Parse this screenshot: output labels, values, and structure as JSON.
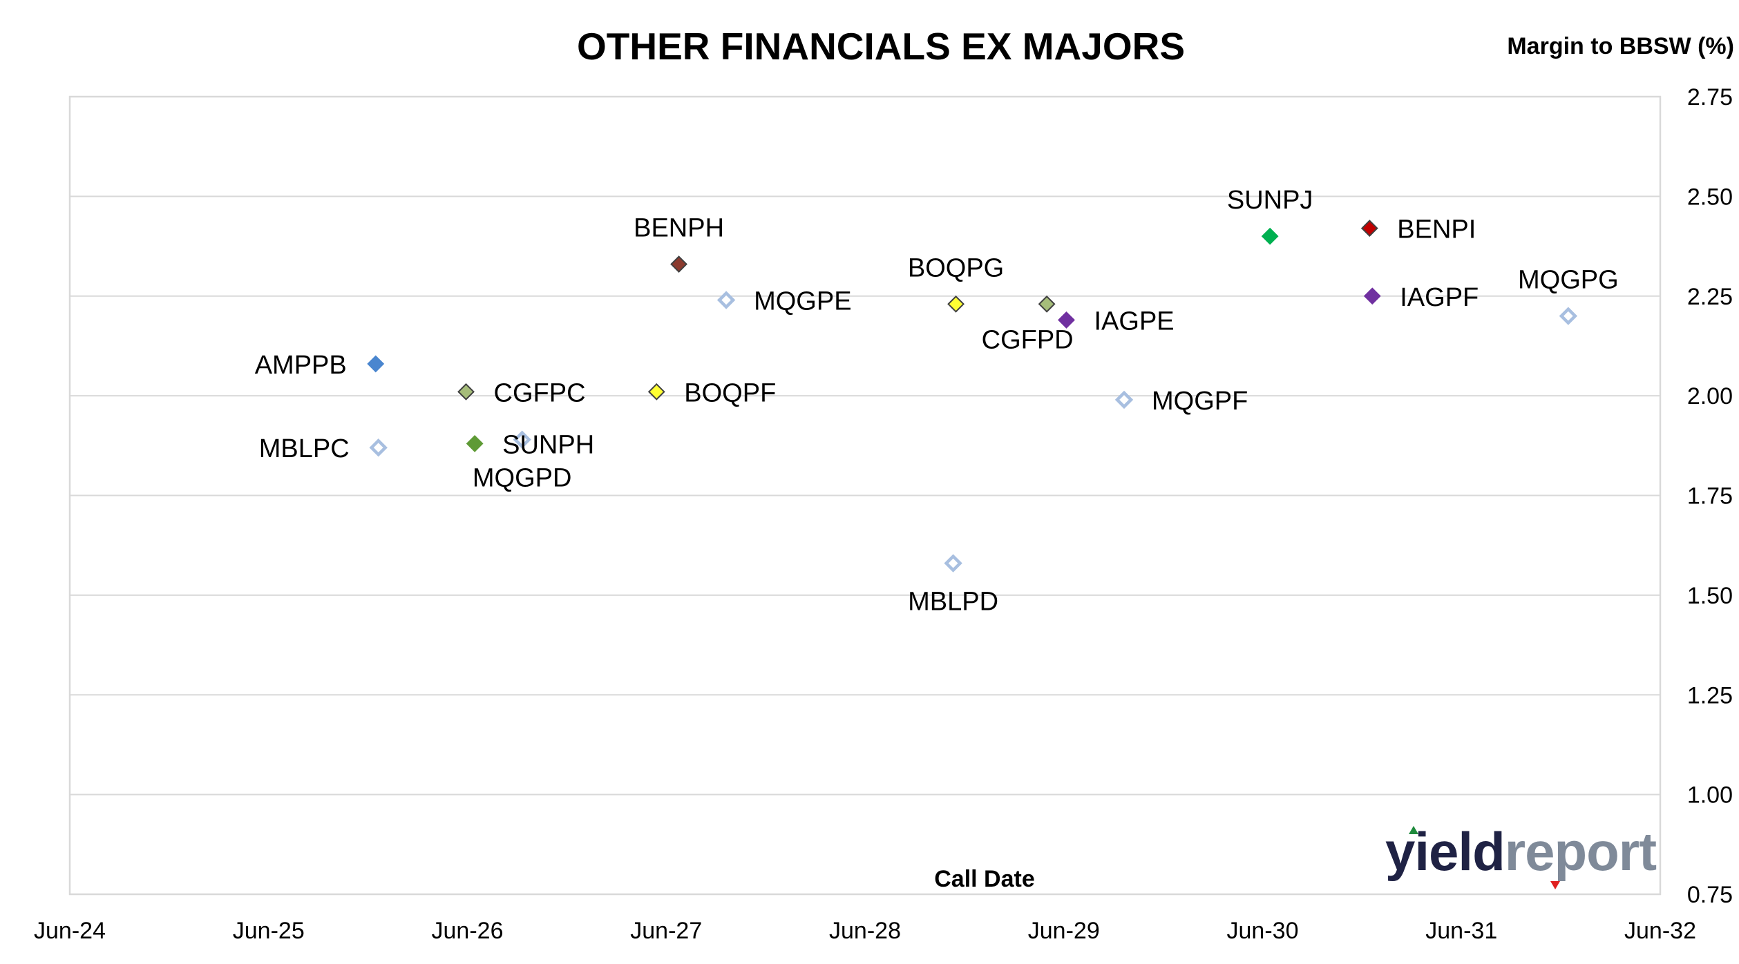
{
  "chart_data": {
    "type": "scatter",
    "title": "OTHER FINANCIALS EX MAJORS",
    "xlabel": "Call Date",
    "ylabel": "Margin to BBSW (%)",
    "x_ticks": [
      "Jun-24",
      "Jun-25",
      "Jun-26",
      "Jun-27",
      "Jun-28",
      "Jun-29",
      "Jun-30",
      "Jun-31",
      "Jun-32"
    ],
    "xlim": [
      "2024-06",
      "2032-06"
    ],
    "ylim": [
      0.75,
      2.75
    ],
    "y_ticks": [
      "0.75",
      "1.00",
      "1.25",
      "1.50",
      "1.75",
      "2.00",
      "2.25",
      "2.50",
      "2.75"
    ],
    "y_axis_position": "right",
    "grid": "horizontal",
    "legend": "none",
    "points": [
      {
        "label": "AMPPB",
        "x": "2025-12-15",
        "y": 2.08,
        "color": "#4a86cf",
        "filled": true,
        "label_pos": "left"
      },
      {
        "label": "MBLPC",
        "x": "2025-12-20",
        "y": 1.87,
        "color": "#a8bfe0",
        "filled": false,
        "label_pos": "left"
      },
      {
        "label": "CGFPC",
        "x": "2026-05-30",
        "y": 2.01,
        "color": "#a6bd7a",
        "filled": true,
        "label_pos": "right"
      },
      {
        "label": "SUNPH",
        "x": "2026-06-15",
        "y": 1.88,
        "color": "#5e9a35",
        "filled": true,
        "label_pos": "right"
      },
      {
        "label": "MQGPD",
        "x": "2026-09-10",
        "y": 1.89,
        "color": "#a8bfe0",
        "filled": false,
        "label_pos": "below"
      },
      {
        "label": "BOQPF",
        "x": "2027-05-15",
        "y": 2.01,
        "color": "#ffff33",
        "filled": true,
        "label_pos": "right"
      },
      {
        "label": "BENPH",
        "x": "2027-06-25",
        "y": 2.33,
        "color": "#8b3a2e",
        "filled": true,
        "label_pos": "above"
      },
      {
        "label": "MQGPE",
        "x": "2027-09-20",
        "y": 2.24,
        "color": "#a8bfe0",
        "filled": false,
        "label_pos": "right"
      },
      {
        "label": "BOQPG",
        "x": "2028-11-15",
        "y": 2.23,
        "color": "#ffff33",
        "filled": true,
        "label_pos": "above"
      },
      {
        "label": "MBLPD",
        "x": "2028-11-10",
        "y": 1.58,
        "color": "#a8bfe0",
        "filled": false,
        "label_pos": "below"
      },
      {
        "label": "CGFPD",
        "x": "2029-05-01",
        "y": 2.23,
        "color": "#a6bd7a",
        "filled": true,
        "label_pos": "below-left"
      },
      {
        "label": "IAGPE",
        "x": "2029-06-06",
        "y": 2.19,
        "color": "#7030a0",
        "filled": true,
        "label_pos": "right"
      },
      {
        "label": "MQGPF",
        "x": "2029-09-20",
        "y": 1.99,
        "color": "#a8bfe0",
        "filled": false,
        "label_pos": "right"
      },
      {
        "label": "SUNPJ",
        "x": "2030-06-15",
        "y": 2.4,
        "color": "#00b050",
        "filled": true,
        "label_pos": "above"
      },
      {
        "label": "BENPI",
        "x": "2030-12-15",
        "y": 2.42,
        "color": "#c00000",
        "filled": true,
        "label_pos": "right"
      },
      {
        "label": "IAGPF",
        "x": "2030-12-20",
        "y": 2.25,
        "color": "#7030a0",
        "filled": true,
        "label_pos": "right"
      },
      {
        "label": "MQGPG",
        "x": "2031-12-15",
        "y": 2.2,
        "color": "#a8bfe0",
        "filled": false,
        "label_pos": "above"
      }
    ]
  },
  "logo": {
    "dark": "yield",
    "light": "report",
    "dark_color": "#1f2244",
    "light_color": "#7f8a99"
  }
}
